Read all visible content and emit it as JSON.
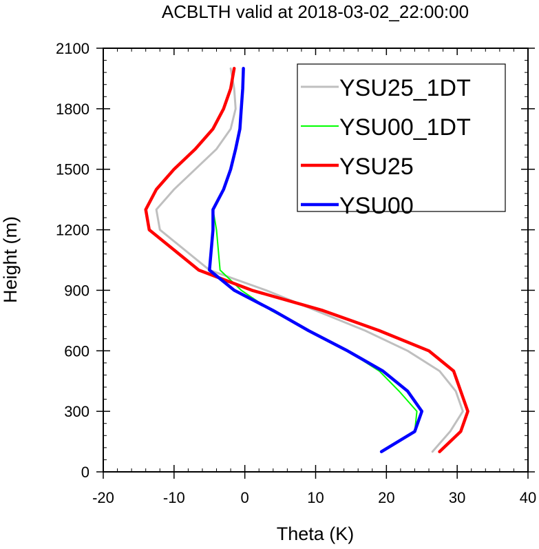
{
  "chart_data": {
    "type": "line",
    "title": "ACBLTH valid at 2018-03-02_22:00:00",
    "xlabel": "Theta (K)",
    "ylabel": "Height (m)",
    "xlim": [
      -20,
      40
    ],
    "ylim": [
      0,
      2100
    ],
    "xticks": [
      -20,
      -10,
      0,
      10,
      20,
      30,
      40
    ],
    "yticks": [
      0,
      300,
      600,
      900,
      1200,
      1500,
      1800,
      2100
    ],
    "grid": false,
    "legend_position": "top-right",
    "series": [
      {
        "name": "YSU25_1DT",
        "color": "#bfbfbf",
        "points": [
          [
            26.5,
            100
          ],
          [
            29,
            200
          ],
          [
            30.8,
            300
          ],
          [
            29.8,
            400
          ],
          [
            27.5,
            500
          ],
          [
            23,
            600
          ],
          [
            17,
            700
          ],
          [
            10,
            800
          ],
          [
            3,
            900
          ],
          [
            -5,
            1000
          ],
          [
            -12,
            1200
          ],
          [
            -12.5,
            1300
          ],
          [
            -10,
            1400
          ],
          [
            -7,
            1500
          ],
          [
            -4,
            1600
          ],
          [
            -2,
            1700
          ],
          [
            -1.3,
            1800
          ],
          [
            -1.5,
            1900
          ],
          [
            -2,
            2000
          ]
        ]
      },
      {
        "name": "YSU00_1DT",
        "color": "#00ff00",
        "points": [
          [
            19.5,
            100
          ],
          [
            24,
            200
          ],
          [
            24.3,
            300
          ],
          [
            21.8,
            400
          ],
          [
            19,
            500
          ],
          [
            14.5,
            600
          ],
          [
            9,
            700
          ],
          [
            3.7,
            800
          ],
          [
            -0.5,
            900
          ],
          [
            -3.5,
            1000
          ],
          [
            -4,
            1200
          ],
          [
            -4.5,
            1300
          ],
          [
            -3,
            1400
          ],
          [
            -2,
            1500
          ],
          [
            -1.3,
            1600
          ],
          [
            -0.7,
            1700
          ],
          [
            -0.4,
            1800
          ],
          [
            -0.3,
            1900
          ],
          [
            -0.3,
            2000
          ]
        ]
      },
      {
        "name": "YSU25",
        "color": "#ff0000",
        "points": [
          [
            27.5,
            100
          ],
          [
            30.5,
            200
          ],
          [
            31.5,
            300
          ],
          [
            30.5,
            400
          ],
          [
            29.5,
            500
          ],
          [
            26,
            600
          ],
          [
            19,
            700
          ],
          [
            11,
            800
          ],
          [
            1,
            900
          ],
          [
            -6.5,
            1000
          ],
          [
            -13.5,
            1200
          ],
          [
            -14,
            1300
          ],
          [
            -12.5,
            1400
          ],
          [
            -10,
            1500
          ],
          [
            -7,
            1600
          ],
          [
            -4.5,
            1700
          ],
          [
            -3,
            1800
          ],
          [
            -2,
            1900
          ],
          [
            -1.5,
            2000
          ]
        ]
      },
      {
        "name": "YSU00",
        "color": "#0000ff",
        "points": [
          [
            19.3,
            100
          ],
          [
            24,
            200
          ],
          [
            25,
            300
          ],
          [
            23,
            400
          ],
          [
            19.5,
            500
          ],
          [
            14.5,
            600
          ],
          [
            9,
            700
          ],
          [
            4,
            800
          ],
          [
            -1.5,
            900
          ],
          [
            -5,
            1000
          ],
          [
            -4.5,
            1200
          ],
          [
            -4.5,
            1300
          ],
          [
            -3,
            1400
          ],
          [
            -2,
            1500
          ],
          [
            -1.3,
            1600
          ],
          [
            -0.7,
            1700
          ],
          [
            -0.5,
            1800
          ],
          [
            -0.3,
            1900
          ],
          [
            -0.2,
            2000
          ]
        ]
      }
    ]
  }
}
